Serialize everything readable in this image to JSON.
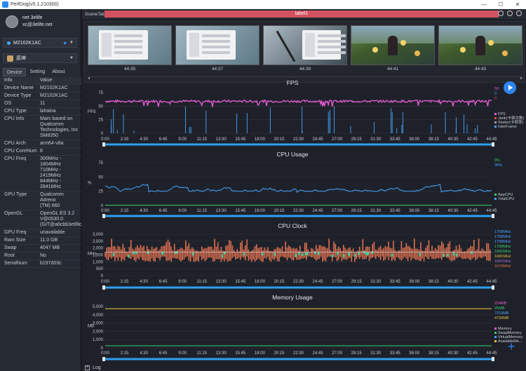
{
  "window": {
    "title": "PerfDog(v5.1.210300)",
    "controls": [
      "—",
      "☐",
      "✕"
    ]
  },
  "profile": {
    "name": "net 3elife",
    "email": "xc@3elife.net"
  },
  "device_selector": {
    "value": "M2102K1AC"
  },
  "app_selector": {
    "value": "原神"
  },
  "tabs": [
    "Device",
    "Setting",
    "About"
  ],
  "device_table": {
    "header": [
      "Info",
      "Value"
    ],
    "rows": [
      [
        "Device Name",
        "M2102K1AC"
      ],
      [
        "Device Type",
        "M2102K1AC"
      ],
      [
        "OS",
        "11"
      ],
      [
        "CPU Type",
        "lahaina"
      ],
      [
        "CPU Info",
        "Mars based on\nQualcomm\nTechnologies, Inc\nSM8350"
      ],
      [
        "CPU Arch",
        "arm64-v8a"
      ],
      [
        "CPU CoreNum",
        "8"
      ],
      [
        "CPU Freq",
        "300MHz - 1804MHz\n710MHz - 2419MHz\n844MHz - 2841MHz"
      ],
      [
        "GPU Type",
        "Qualcomm Adreno\n(TM) 660"
      ],
      [
        "OpenGL",
        "OpenGL ES 3.2\nV@0530.0\n(GIT@a6cbb3e99c"
      ],
      [
        "GPU Freq",
        "unavailable"
      ],
      [
        "Ram Size",
        "11.0 GB"
      ],
      [
        "Swap",
        "4047 MB"
      ],
      [
        "Root",
        "No"
      ],
      [
        "SerialNum",
        "b197d03c"
      ]
    ]
  },
  "scene": {
    "tab_label": "SceneTab",
    "label": "label1"
  },
  "thumbnails": [
    {
      "time": "44:35",
      "kind": "menu"
    },
    {
      "time": "44:37",
      "kind": "menu"
    },
    {
      "time": "44:39",
      "kind": "dark"
    },
    {
      "time": "44:41",
      "kind": "game"
    },
    {
      "time": "44:43",
      "kind": "game"
    }
  ],
  "x_ticks": [
    "0:00",
    "2:15",
    "4:30",
    "6:45",
    "9:00",
    "11:15",
    "13:30",
    "15:45",
    "18:00",
    "20:15",
    "22:30",
    "24:45",
    "27:00",
    "29:15",
    "31:30",
    "33:45",
    "36:00",
    "38:15",
    "40:30",
    "42:45",
    "44:45"
  ],
  "charts": [
    {
      "title": "FPS",
      "ylabel": "FPS",
      "yticks": [
        "0",
        "25",
        "50",
        "75"
      ],
      "legend_values": [
        {
          "text": "59",
          "color": "#e05bd0"
        },
        {
          "text": "0",
          "color": "#4aa3ff"
        },
        {
          "text": "0",
          "color": "#e04848"
        }
      ],
      "legend_items": [
        {
          "text": "FPS",
          "color": "#e05bd0"
        },
        {
          "text": "Jank(卡顿次数)",
          "color": "#e04848"
        },
        {
          "text": "Stutter(卡顿率)",
          "color": "#9aa0aa"
        },
        {
          "text": "InterFrame",
          "color": "#4aa3ff"
        }
      ]
    },
    {
      "title": "CPU Usage",
      "ylabel": "%",
      "yticks": [
        "0",
        "25",
        "50",
        "75"
      ],
      "legend_values": [
        {
          "text": "0%",
          "color": "#3ecf6a"
        },
        {
          "text": "36%",
          "color": "#4aa3ff"
        }
      ],
      "legend_items": [
        {
          "text": "AppCPU",
          "color": "#3ecf6a"
        },
        {
          "text": "TotalCPU",
          "color": "#4aa3ff"
        }
      ]
    },
    {
      "title": "CPU Clock",
      "ylabel": "MHz",
      "yticks": [
        "0",
        "500",
        "1,000",
        "1,500",
        "2,000",
        "2,500",
        "3,000"
      ],
      "legend_values": [
        {
          "text": "1708MHz",
          "color": "#4aa3ff"
        },
        {
          "text": "1708MHz",
          "color": "#4aa3ff"
        },
        {
          "text": "1708MHz",
          "color": "#4aa3ff"
        },
        {
          "text": "1708MHz",
          "color": "#3ecf6a"
        },
        {
          "text": "1681MHz",
          "color": "#3ecf6a"
        },
        {
          "text": "1681MHz",
          "color": "#e0c040"
        },
        {
          "text": "1681MHz",
          "color": "#a070e0"
        },
        {
          "text": "1670MHz",
          "color": "#e07050"
        }
      ],
      "legend_items": []
    },
    {
      "title": "Memory Usage",
      "ylabel": "MB",
      "yticks": [
        "0",
        "1,000",
        "2,000",
        "3,000",
        "4,000",
        "5,000"
      ],
      "legend_values": [
        {
          "text": "224MB",
          "color": "#e05bd0"
        },
        {
          "text": "25MB",
          "color": "#3ecf6a"
        },
        {
          "text": "7219MB",
          "color": "#4aa3ff"
        },
        {
          "text": "4730MB",
          "color": "#e0c040"
        }
      ],
      "legend_items": [
        {
          "text": "Memory",
          "color": "#e05bd0"
        },
        {
          "text": "SwapMemory",
          "color": "#3ecf6a"
        },
        {
          "text": "VirtualMemory",
          "color": "#4aa3ff"
        },
        {
          "text": "AvailableMe...",
          "color": "#e0c040"
        }
      ]
    }
  ],
  "footer": {
    "log_label": "Log"
  },
  "colors": {
    "fps": "#e05bd0",
    "interframe": "#4aa3ff",
    "cpu_total": "#4aa3ff",
    "cpu_app": "#3ecf6a",
    "clock": "#e07050",
    "clock_alt": "#3ecf9a",
    "memory_avail": "#e0c040",
    "memory_virtual": "#4aa3ff",
    "memory_app": "#3ecf6a",
    "scrollbar": "#2f9ff2"
  }
}
